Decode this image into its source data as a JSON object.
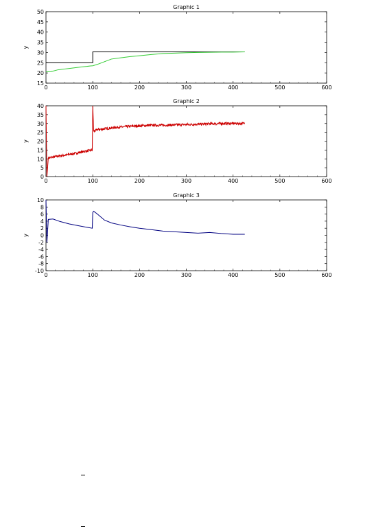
{
  "chart_data": [
    {
      "type": "line",
      "title": "Graphic 1",
      "xlabel": "",
      "ylabel": "y",
      "xlim": [
        0,
        600
      ],
      "ylim": [
        15,
        50
      ],
      "xticks": [
        0,
        100,
        200,
        300,
        400,
        500,
        600
      ],
      "yticks": [
        15,
        20,
        25,
        30,
        35,
        40,
        45,
        50
      ],
      "grid": false,
      "series": [
        {
          "color": "#000000",
          "step": true,
          "x": [
            0,
            100,
            100,
            425
          ],
          "y": [
            25,
            25,
            30.3,
            30.3
          ]
        },
        {
          "color": "#33cc33",
          "x": [
            0,
            10,
            25,
            50,
            75,
            95,
            100,
            110,
            125,
            140,
            160,
            180,
            200,
            225,
            250,
            275,
            300,
            325,
            350,
            375,
            400,
            425
          ],
          "y": [
            20.5,
            20.6,
            21.5,
            22.2,
            22.9,
            23.4,
            23.5,
            24.2,
            25.5,
            26.8,
            27.4,
            28.0,
            28.4,
            29.0,
            29.5,
            29.7,
            29.9,
            30.0,
            30.1,
            30.2,
            30.2,
            30.3
          ]
        }
      ]
    },
    {
      "type": "line",
      "title": "Graphic 2",
      "xlabel": "",
      "ylabel": "y",
      "xlim": [
        0,
        600
      ],
      "ylim": [
        0,
        40
      ],
      "xticks": [
        0,
        100,
        200,
        300,
        400,
        500,
        600
      ],
      "yticks": [
        0,
        5,
        10,
        15,
        20,
        25,
        30,
        35,
        40
      ],
      "grid": false,
      "series": [
        {
          "color": "#cc0000",
          "noisy": true,
          "x": [
            0,
            2,
            5,
            25,
            50,
            75,
            99,
            100,
            102,
            110,
            125,
            150,
            175,
            200,
            225,
            250,
            275,
            300,
            325,
            350,
            375,
            400,
            425
          ],
          "y": [
            40,
            0,
            10.5,
            11.5,
            12.5,
            13.8,
            15.0,
            40,
            25.5,
            26.5,
            27.0,
            27.8,
            28.3,
            28.7,
            29.0,
            29.0,
            29.2,
            29.4,
            29.6,
            29.8,
            30.0,
            30.0,
            30.0
          ]
        }
      ]
    },
    {
      "type": "line",
      "title": "Graphic 3",
      "xlabel": "",
      "ylabel": "y",
      "xlim": [
        0,
        600
      ],
      "ylim": [
        -10,
        10
      ],
      "xticks": [
        0,
        100,
        200,
        300,
        400,
        500,
        600
      ],
      "yticks": [
        -10,
        -8,
        -6,
        -4,
        -2,
        0,
        2,
        4,
        6,
        8,
        10
      ],
      "grid": false,
      "series": [
        {
          "color": "#000080",
          "x": [
            0,
            2,
            5,
            15,
            30,
            50,
            70,
            90,
            99,
            100,
            102,
            110,
            125,
            140,
            160,
            180,
            200,
            225,
            250,
            275,
            300,
            325,
            350,
            375,
            400,
            425
          ],
          "y": [
            10,
            -2,
            4.5,
            4.6,
            3.9,
            3.2,
            2.7,
            2.2,
            2.0,
            6.5,
            6.8,
            6.0,
            4.3,
            3.5,
            2.9,
            2.4,
            2.0,
            1.6,
            1.2,
            1.0,
            0.8,
            0.6,
            0.8,
            0.5,
            0.3,
            0.3
          ]
        }
      ]
    }
  ]
}
